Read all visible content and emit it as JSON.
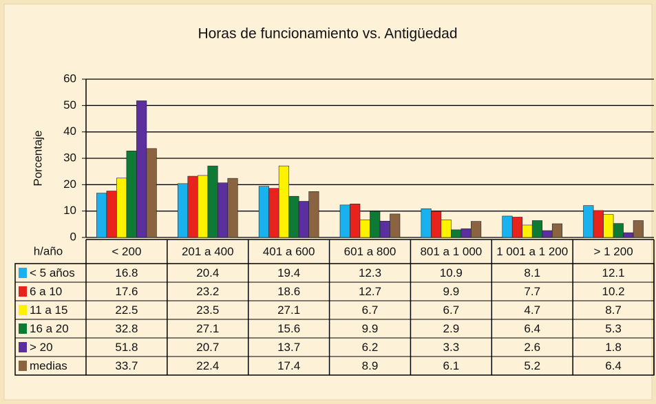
{
  "chart_data": {
    "type": "bar",
    "title": "Horas de funcionamiento vs. Antigüedad",
    "y_label": "Porcentaje",
    "x_label": "h/año",
    "categories": [
      "< 200",
      "201 a 400",
      "401 a 600",
      "601 a 800",
      "801 a 1 000",
      "1 001 a 1 200",
      "> 1 200"
    ],
    "series": [
      {
        "name": "< 5 años",
        "color": "#19b2ef",
        "values": [
          16.8,
          20.4,
          19.4,
          12.3,
          10.9,
          8.1,
          12.1
        ]
      },
      {
        "name": "6 a 10",
        "color": "#e8231d",
        "values": [
          17.6,
          23.2,
          18.6,
          12.7,
          9.9,
          7.7,
          10.2
        ]
      },
      {
        "name": "11 a 15",
        "color": "#fff200",
        "values": [
          22.5,
          23.5,
          27.1,
          6.7,
          6.7,
          4.7,
          8.7
        ]
      },
      {
        "name": "16 a 20",
        "color": "#0e7a36",
        "values": [
          32.8,
          27.1,
          15.6,
          9.9,
          2.9,
          6.4,
          5.3
        ]
      },
      {
        "name": "> 20",
        "color": "#5b2f9d",
        "values": [
          51.8,
          20.7,
          13.7,
          6.2,
          3.3,
          2.6,
          1.8
        ]
      },
      {
        "name": "medias",
        "color": "#8a6441",
        "values": [
          33.7,
          22.4,
          17.4,
          8.9,
          6.1,
          5.2,
          6.4
        ]
      }
    ],
    "ylim": [
      0,
      60
    ],
    "yticks": [
      0,
      10,
      20,
      30,
      40,
      50,
      60
    ],
    "grid": true
  }
}
